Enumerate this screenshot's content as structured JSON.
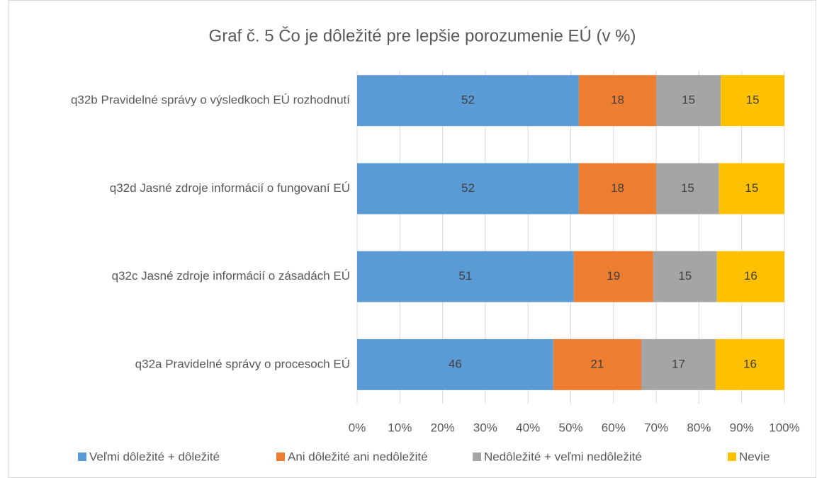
{
  "chart_data": {
    "type": "bar",
    "orientation": "horizontal",
    "stacked": true,
    "title": "Graf č. 5 Čo je dôležité pre lepšie porozumenie EÚ (v %)",
    "categories": [
      "q32b Pravidelné správy o výsledkoch EÚ rozhodnutí",
      "q32d Jasné zdroje informácií o fungovaní EÚ",
      "q32c Jasné zdroje informácií o zásadách EÚ",
      "q32a Pravidelné správy o procesoch EÚ"
    ],
    "series": [
      {
        "name": "Veľmi dôležité + dôležité",
        "color": "#5b9bd5",
        "values": [
          51.9,
          51.9,
          50.7,
          45.9
        ],
        "value_labels": [
          "52",
          "52",
          "51",
          "46"
        ]
      },
      {
        "name": "Ani dôležité ani nedôležité",
        "color": "#ed7d31",
        "values": [
          18.1,
          18.1,
          18.6,
          20.6
        ],
        "value_labels": [
          "18",
          "18",
          "19",
          "21"
        ]
      },
      {
        "name": "Nedôležité + veľmi nedôležité",
        "color": "#a5a5a5",
        "values": [
          15.1,
          14.7,
          14.9,
          17.4
        ],
        "value_labels": [
          "15",
          "15",
          "15",
          "17"
        ]
      },
      {
        "name": "Nevie",
        "color": "#ffc000",
        "values": [
          14.9,
          15.3,
          15.8,
          16.1
        ],
        "value_labels": [
          "15",
          "15",
          "16",
          "16"
        ]
      }
    ],
    "xlim": [
      0,
      100
    ],
    "xticks": [
      {
        "value": 0,
        "label": "0%"
      },
      {
        "value": 10,
        "label": "10%"
      },
      {
        "value": 20,
        "label": "20%"
      },
      {
        "value": 30,
        "label": "30%"
      },
      {
        "value": 40,
        "label": "40%"
      },
      {
        "value": 50,
        "label": "50%"
      },
      {
        "value": 60,
        "label": "60%"
      },
      {
        "value": 70,
        "label": "70%"
      },
      {
        "value": 80,
        "label": "80%"
      },
      {
        "value": 90,
        "label": "90%"
      },
      {
        "value": 100,
        "label": "100%"
      }
    ],
    "grid": true,
    "legend": "bottom"
  }
}
